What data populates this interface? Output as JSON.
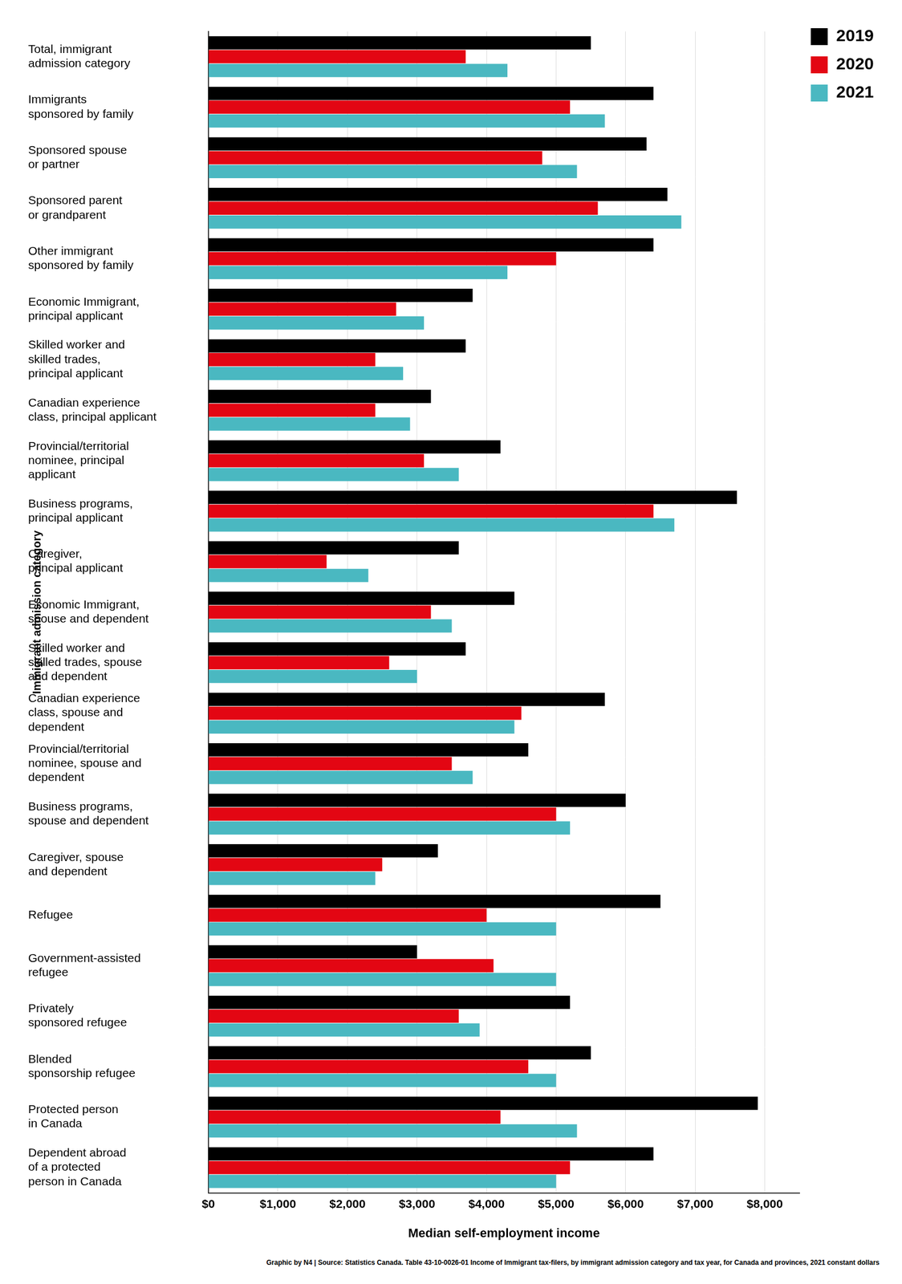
{
  "chart_data": {
    "type": "bar",
    "orientation": "horizontal",
    "x_label": "Median self-employment income",
    "y_label": "Immigrant admission category",
    "source": "Graphic by N4 | Source: Statistics Canada. Table 43-10-0026-01  Income of Immigrant tax-filers, by immigrant admission category and tax year, for Canada and provinces, 2021 constant dollars",
    "categories": [
      [
        "Total, immigrant",
        "admission category"
      ],
      [
        "Immigrants",
        "sponsored by family"
      ],
      [
        "Sponsored spouse",
        "or partner"
      ],
      [
        "Sponsored parent",
        "or grandparent"
      ],
      [
        "Other immigrant",
        "sponsored by family"
      ],
      [
        "Economic Immigrant,",
        "principal applicant"
      ],
      [
        "Skilled worker and",
        "skilled trades,",
        "principal applicant"
      ],
      [
        "Canadian experience",
        "class, principal applicant"
      ],
      [
        "Provincial/territorial",
        "nominee, principal",
        "applicant"
      ],
      [
        "Business programs,",
        "principal applicant"
      ],
      [
        "Caregiver,",
        "principal applicant"
      ],
      [
        "Economic Immigrant,",
        "spouse and dependent"
      ],
      [
        "Skilled worker and",
        "skilled trades, spouse",
        "and dependent"
      ],
      [
        "Canadian experience",
        "class, spouse and",
        "dependent"
      ],
      [
        "Provincial/territorial",
        "nominee, spouse and",
        "dependent"
      ],
      [
        "Business programs,",
        "spouse and dependent"
      ],
      [
        "Caregiver, spouse",
        "and dependent"
      ],
      [
        "Refugee"
      ],
      [
        "Government-assisted",
        "refugee"
      ],
      [
        "Privately",
        "sponsored refugee"
      ],
      [
        "Blended",
        "sponsorship refugee"
      ],
      [
        "Protected person",
        "in Canada"
      ],
      [
        "Dependent abroad",
        "of a protected",
        "person in Canada"
      ]
    ],
    "series": [
      {
        "name": "2019",
        "color": "#000000",
        "values": [
          5500,
          6400,
          6300,
          6600,
          6400,
          3800,
          3700,
          3200,
          4200,
          7600,
          3600,
          4400,
          3700,
          5700,
          4600,
          6000,
          3300,
          6500,
          3000,
          5200,
          5500,
          7900,
          6400
        ]
      },
      {
        "name": "2020",
        "color": "#e30613",
        "values": [
          3700,
          5200,
          4800,
          5600,
          5000,
          2700,
          2400,
          2400,
          3100,
          6400,
          1700,
          3200,
          2600,
          4500,
          3500,
          5000,
          2500,
          4000,
          4100,
          3600,
          4600,
          4200,
          5200
        ]
      },
      {
        "name": "2021",
        "color": "#4ab8c1",
        "values": [
          4300,
          5700,
          5300,
          6800,
          4300,
          3100,
          2800,
          2900,
          3600,
          6700,
          2300,
          3500,
          3000,
          4400,
          3800,
          5200,
          2400,
          5000,
          5000,
          3900,
          5000,
          5300,
          5000
        ]
      }
    ],
    "xlim": [
      0,
      8500
    ],
    "xticks": [
      {
        "value": 0,
        "label": "$0"
      },
      {
        "value": 1000,
        "label": "$1,000"
      },
      {
        "value": 2000,
        "label": "$2,000"
      },
      {
        "value": 3000,
        "label": "$3,000"
      },
      {
        "value": 4000,
        "label": "$4,000"
      },
      {
        "value": 5000,
        "label": "$5,000"
      },
      {
        "value": 6000,
        "label": "$6,000"
      },
      {
        "value": 7000,
        "label": "$7,000"
      },
      {
        "value": 8000,
        "label": "$8,000"
      }
    ],
    "grid": true,
    "legend": "upper right"
  }
}
